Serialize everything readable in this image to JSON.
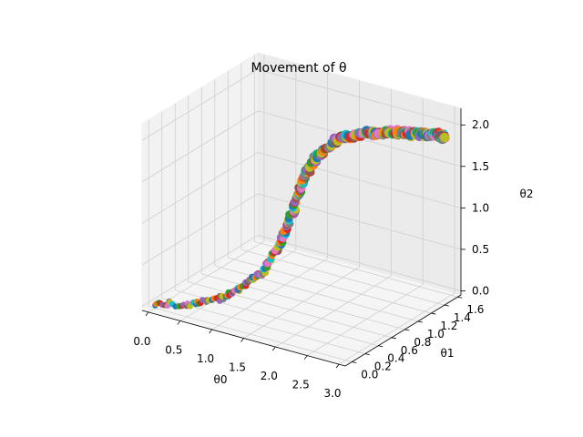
{
  "chart_data": {
    "type": "scatter",
    "projection": "3d",
    "title": "Movement of θ",
    "xlabel": "θ0",
    "ylabel": "θ1",
    "zlabel": "θ2",
    "xlim": [
      -0.1,
      3.1
    ],
    "ylim": [
      -0.1,
      1.65
    ],
    "zlim": [
      -0.05,
      2.2
    ],
    "xticks": [
      "0.0",
      "0.5",
      "1.0",
      "1.5",
      "2.0",
      "2.5",
      "3.0"
    ],
    "yticks": [
      "0.0",
      "0.2",
      "0.4",
      "0.6",
      "0.8",
      "1.0",
      "1.2",
      "1.4",
      "1.6"
    ],
    "zticks": [
      "0.0",
      "0.5",
      "1.0",
      "1.5",
      "2.0"
    ],
    "grid": true,
    "colors": [
      "#1f77b4",
      "#ff7f0e",
      "#2ca02c",
      "#d62728",
      "#9467bd",
      "#8c564b",
      "#e377c2",
      "#7f7f7f",
      "#bcbd22",
      "#17becf"
    ],
    "trajectory_waypoints": [
      {
        "x": 0.0,
        "y": 0.0,
        "z": 0.0
      },
      {
        "x": 0.4,
        "y": 0.05,
        "z": 0.05
      },
      {
        "x": 0.8,
        "y": 0.12,
        "z": 0.15
      },
      {
        "x": 1.1,
        "y": 0.2,
        "z": 0.3
      },
      {
        "x": 1.4,
        "y": 0.3,
        "z": 0.55
      },
      {
        "x": 1.55,
        "y": 0.4,
        "z": 0.85
      },
      {
        "x": 1.65,
        "y": 0.5,
        "z": 1.2
      },
      {
        "x": 1.7,
        "y": 0.6,
        "z": 1.55
      },
      {
        "x": 1.8,
        "y": 0.7,
        "z": 1.8
      },
      {
        "x": 2.0,
        "y": 0.85,
        "z": 2.0
      },
      {
        "x": 2.3,
        "y": 1.0,
        "z": 2.05
      },
      {
        "x": 2.6,
        "y": 1.15,
        "z": 2.05
      },
      {
        "x": 2.8,
        "y": 1.3,
        "z": 2.0
      },
      {
        "x": 2.95,
        "y": 1.45,
        "z": 1.95
      },
      {
        "x": 3.0,
        "y": 1.5,
        "z": 1.9
      }
    ]
  }
}
